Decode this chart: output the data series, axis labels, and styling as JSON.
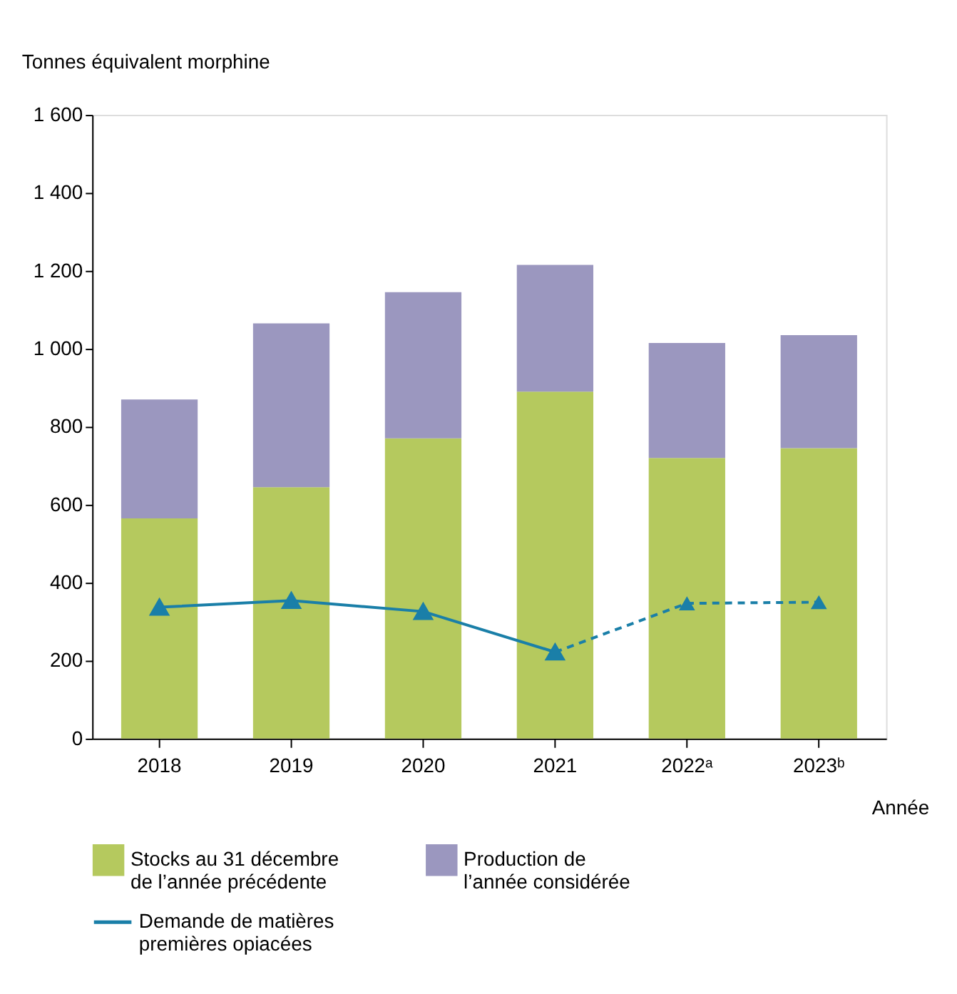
{
  "chart_data": {
    "type": "bar",
    "stacked": true,
    "ylabel": "Tonnes équivalent morphine",
    "xlabel": "Année",
    "categories": [
      "2018",
      "2019",
      "2020",
      "2021",
      "2022ᵃ",
      "2023ᵇ"
    ],
    "series": [
      {
        "name": "Stocks au 31 décembre\nde l’année précédente",
        "color": "#b5c95e",
        "values": [
          565,
          645,
          770,
          890,
          720,
          745
        ]
      },
      {
        "name": "Production de\nl’année considérée",
        "color": "#9b97bf",
        "values": [
          305,
          420,
          375,
          325,
          295,
          290
        ]
      },
      {
        "name": "Demande de matières\npremières opiacées",
        "type": "line",
        "color": "#1a7fa8",
        "marker": "triangle",
        "line_style": "solid",
        "values": [
          337,
          354,
          326,
          222,
          null,
          null
        ]
      },
      {
        "type": "line",
        "color": "#1a7fa8",
        "marker": "triangle",
        "line_style": "dashed",
        "values": [
          null,
          null,
          null,
          222,
          347,
          350
        ]
      }
    ],
    "ylim": [
      0,
      1600
    ],
    "yticks": [
      0,
      200,
      400,
      600,
      800,
      {
        "value": 1000,
        "label": "1 000"
      },
      {
        "value": 1200,
        "label": "1 200"
      },
      {
        "value": 1400,
        "label": "1 400"
      },
      {
        "value": 1600,
        "label": "1 600"
      }
    ],
    "grid": false,
    "legend": "bottom"
  }
}
